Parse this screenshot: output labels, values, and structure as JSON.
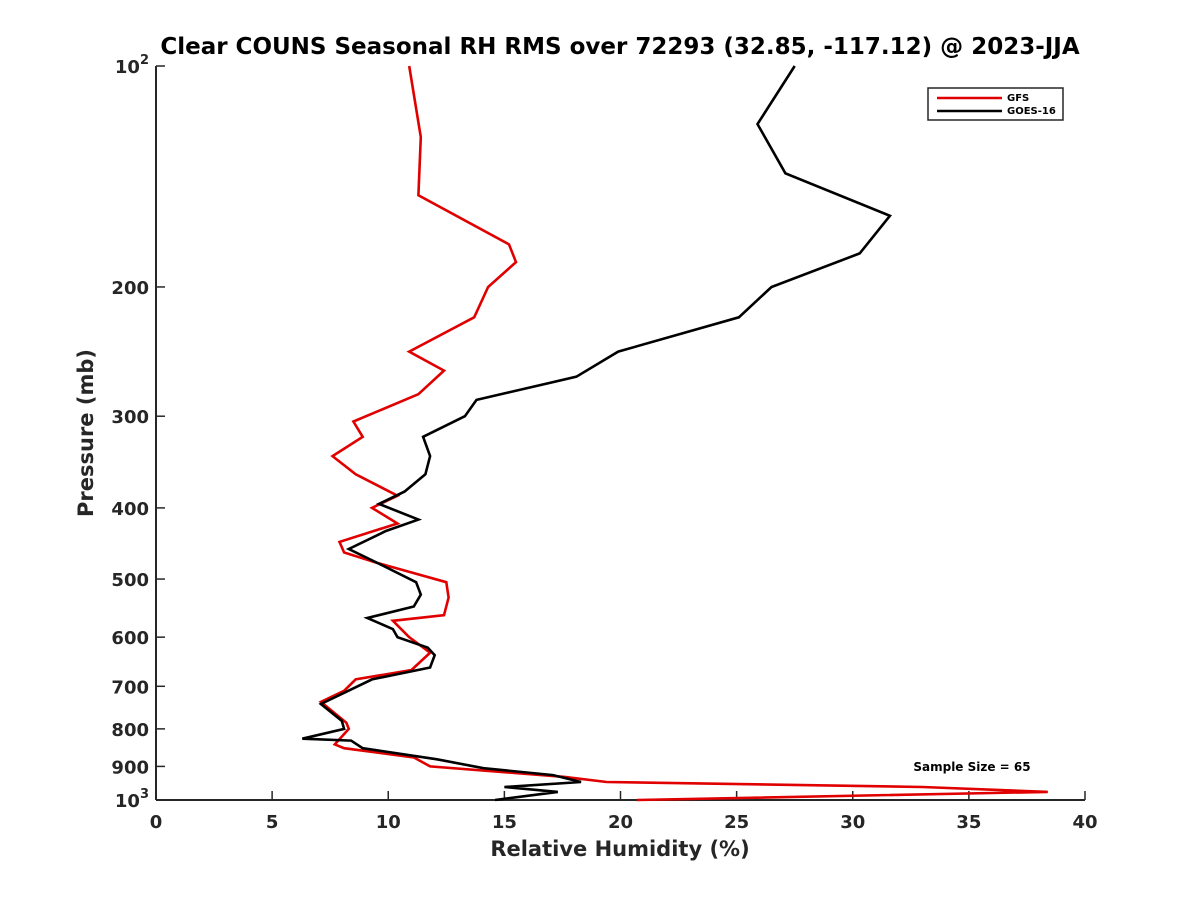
{
  "chart_data": {
    "type": "line",
    "title": "Clear COUNS Seasonal RH RMS over 72293 (32.85, -117.12) @ 2023-JJA",
    "xlabel": "Relative Humidity (%)",
    "ylabel": "Pressure (mb)",
    "xlim": [
      0,
      40
    ],
    "ylim": [
      100,
      1000
    ],
    "yscale": "log",
    "y_reversed": true,
    "xticks": [
      0,
      5,
      10,
      15,
      20,
      25,
      30,
      35,
      40
    ],
    "xtick_labels": [
      "0",
      "5",
      "10",
      "15",
      "20",
      "25",
      "30",
      "35",
      "40"
    ],
    "yticks": [
      {
        "value": 100,
        "base": "10",
        "exp": "2"
      },
      {
        "value": 200,
        "label": "200"
      },
      {
        "value": 300,
        "label": "300"
      },
      {
        "value": 400,
        "label": "400"
      },
      {
        "value": 500,
        "label": "500"
      },
      {
        "value": 600,
        "label": "600"
      },
      {
        "value": 700,
        "label": "700"
      },
      {
        "value": 800,
        "label": "800"
      },
      {
        "value": 900,
        "label": "900"
      },
      {
        "value": 1000,
        "base": "10",
        "exp": "3"
      }
    ],
    "legend": {
      "position": "top-right"
    },
    "annotation": "Sample Size = 65",
    "series": [
      {
        "name": "GFS",
        "color": "#e00000",
        "points": [
          [
            10.9,
            100
          ],
          [
            11.4,
            125
          ],
          [
            11.3,
            150
          ],
          [
            15.2,
            175
          ],
          [
            15.5,
            185
          ],
          [
            14.3,
            200
          ],
          [
            13.7,
            220
          ],
          [
            10.9,
            245
          ],
          [
            12.4,
            260
          ],
          [
            11.3,
            280
          ],
          [
            8.5,
            305
          ],
          [
            8.9,
            320
          ],
          [
            7.6,
            340
          ],
          [
            8.6,
            360
          ],
          [
            10.4,
            385
          ],
          [
            9.3,
            400
          ],
          [
            10.4,
            420
          ],
          [
            7.9,
            445
          ],
          [
            8.1,
            460
          ],
          [
            9.5,
            475
          ],
          [
            12.5,
            505
          ],
          [
            12.6,
            530
          ],
          [
            12.4,
            560
          ],
          [
            10.2,
            570
          ],
          [
            10.9,
            600
          ],
          [
            11.8,
            630
          ],
          [
            11.0,
            665
          ],
          [
            8.6,
            685
          ],
          [
            8.1,
            710
          ],
          [
            7.1,
            735
          ],
          [
            8.2,
            785
          ],
          [
            8.3,
            800
          ],
          [
            7.7,
            840
          ],
          [
            8.1,
            850
          ],
          [
            11.1,
            875
          ],
          [
            11.8,
            900
          ],
          [
            17.6,
            930
          ],
          [
            19.4,
            945
          ],
          [
            33.0,
            960
          ],
          [
            38.4,
            975
          ],
          [
            20.7,
            1000
          ]
        ]
      },
      {
        "name": "GOES-16",
        "color": "#000000",
        "points": [
          [
            27.5,
            100
          ],
          [
            25.9,
            120
          ],
          [
            27.1,
            140
          ],
          [
            31.6,
            160
          ],
          [
            30.3,
            180
          ],
          [
            26.5,
            200
          ],
          [
            25.1,
            220
          ],
          [
            19.9,
            245
          ],
          [
            18.1,
            265
          ],
          [
            13.8,
            285
          ],
          [
            13.3,
            300
          ],
          [
            11.5,
            320
          ],
          [
            11.8,
            340
          ],
          [
            11.6,
            360
          ],
          [
            10.7,
            380
          ],
          [
            9.6,
            395
          ],
          [
            11.3,
            415
          ],
          [
            9.9,
            430
          ],
          [
            8.3,
            455
          ],
          [
            9.8,
            480
          ],
          [
            11.2,
            505
          ],
          [
            11.4,
            525
          ],
          [
            11.1,
            545
          ],
          [
            9.1,
            565
          ],
          [
            10.2,
            585
          ],
          [
            10.4,
            600
          ],
          [
            11.7,
            620
          ],
          [
            12.0,
            635
          ],
          [
            11.8,
            660
          ],
          [
            9.3,
            685
          ],
          [
            7.1,
            740
          ],
          [
            8.0,
            780
          ],
          [
            8.1,
            800
          ],
          [
            6.3,
            825
          ],
          [
            8.4,
            830
          ],
          [
            8.9,
            850
          ],
          [
            12.1,
            880
          ],
          [
            14.1,
            905
          ],
          [
            17.1,
            925
          ],
          [
            18.3,
            945
          ],
          [
            15.0,
            960
          ],
          [
            17.3,
            975
          ],
          [
            14.6,
            1000
          ]
        ]
      }
    ]
  }
}
